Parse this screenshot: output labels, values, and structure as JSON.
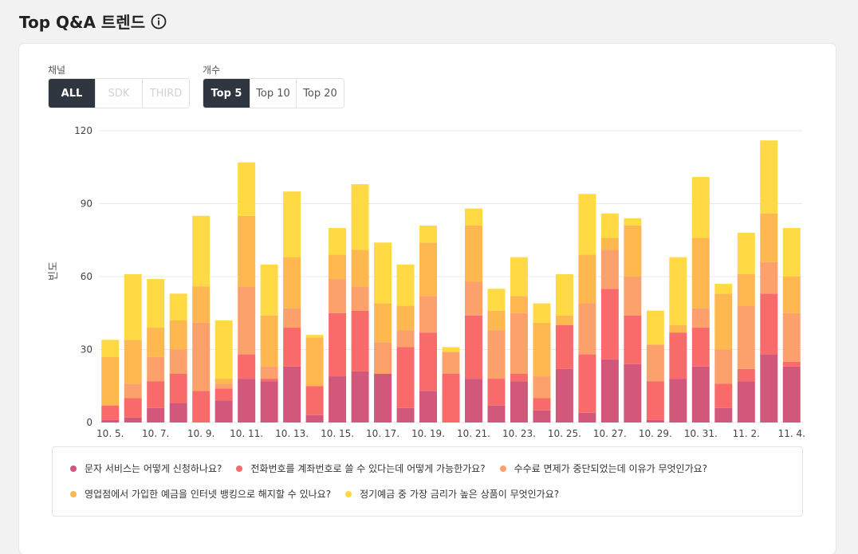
{
  "header": {
    "title": "Top Q&A 트렌드"
  },
  "filters": {
    "channel": {
      "label": "채널",
      "options": [
        "ALL",
        "SDK",
        "THIRD"
      ],
      "selected": "ALL",
      "disabled": [
        "SDK",
        "THIRD"
      ]
    },
    "count": {
      "label": "개수",
      "options": [
        "Top 5",
        "Top 10",
        "Top 20"
      ],
      "selected": "Top 5"
    }
  },
  "chart_data": {
    "type": "bar",
    "stacked": true,
    "ylabel": "빈도",
    "ylim": [
      0,
      120
    ],
    "yticks": [
      0,
      30,
      60,
      90,
      120
    ],
    "grid": true,
    "legend_position": "bottom",
    "tick_labels": [
      "10. 5.",
      "10. 7.",
      "10. 9.",
      "10. 11.",
      "10. 13.",
      "10. 15.",
      "10. 17.",
      "10. 19.",
      "10. 21.",
      "10. 23.",
      "10. 25.",
      "10. 27.",
      "10. 29.",
      "10. 31.",
      "11. 2.",
      "11. 4."
    ],
    "categories": [
      "10. 5.",
      "10. 6.",
      "10. 7.",
      "10. 8.",
      "10. 9.",
      "10. 10.",
      "10. 11.",
      "10. 12.",
      "10. 13.",
      "10. 14.",
      "10. 15.",
      "10. 16.",
      "10. 17.",
      "10. 18.",
      "10. 19.",
      "10. 20.",
      "10. 21.",
      "10. 22.",
      "10. 23.",
      "10. 24.",
      "10. 25.",
      "10. 26.",
      "10. 27.",
      "10. 28.",
      "10. 29.",
      "10. 30.",
      "10. 31.",
      "11. 1.",
      "11. 2.",
      "11. 3.",
      "11. 4."
    ],
    "series": [
      {
        "name": "문자 서비스는 어떻게 신청하나요?",
        "color": "#d1587a",
        "values": [
          1,
          2,
          6,
          8,
          0,
          9,
          18,
          17,
          23,
          3,
          19,
          21,
          20,
          6,
          13,
          0,
          18,
          7,
          17,
          5,
          22,
          4,
          26,
          24,
          1,
          18,
          23,
          6,
          17,
          28,
          23
        ]
      },
      {
        "name": "전화번호를 계좌번호로 쓸 수 있다는데 어떻게 가능한가요?",
        "color": "#f96b6b",
        "values": [
          6,
          8,
          11,
          12,
          13,
          5,
          10,
          1,
          16,
          12,
          26,
          25,
          0,
          25,
          24,
          20,
          26,
          11,
          3,
          5,
          18,
          24,
          29,
          20,
          16,
          19,
          16,
          10,
          5,
          25,
          2
        ]
      },
      {
        "name": "수수료 면제가 중단되었는데 이유가 무엇인가요?",
        "color": "#fca06c",
        "values": [
          0,
          6,
          10,
          10,
          28,
          2,
          28,
          5,
          8,
          0,
          14,
          10,
          13,
          7,
          15,
          9,
          14,
          20,
          25,
          9,
          0,
          21,
          16,
          16,
          15,
          0,
          8,
          14,
          26,
          13,
          20
        ]
      },
      {
        "name": "영업점에서 가입한 예금을 인터넷 뱅킹으로 해지할 수 있나요?",
        "color": "#ffb84f",
        "values": [
          20,
          18,
          12,
          12,
          15,
          2,
          29,
          21,
          21,
          20,
          10,
          15,
          16,
          10,
          22,
          0,
          23,
          8,
          7,
          22,
          4,
          20,
          5,
          21,
          0,
          3,
          29,
          23,
          13,
          20,
          15
        ]
      },
      {
        "name": "정기예금 중 가장 금리가 높은 상품이 무엇인가요?",
        "color": "#ffda44",
        "values": [
          7,
          27,
          20,
          11,
          29,
          24,
          22,
          21,
          27,
          1,
          11,
          27,
          25,
          17,
          7,
          2,
          7,
          9,
          16,
          8,
          17,
          25,
          10,
          3,
          14,
          28,
          25,
          4,
          17,
          30,
          20
        ]
      }
    ]
  }
}
